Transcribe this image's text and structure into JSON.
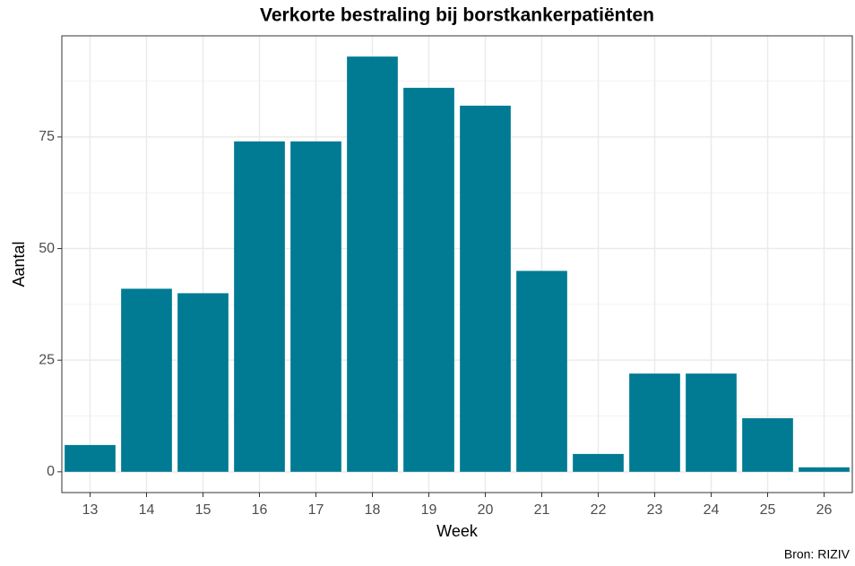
{
  "chart_data": {
    "type": "bar",
    "title": "Verkorte bestraling bij borstkankerpatiënten",
    "x_label": "Week",
    "y_label": "Aantal",
    "caption": "Bron: RIZIV",
    "categories": [
      13,
      14,
      15,
      16,
      17,
      18,
      19,
      20,
      21,
      22,
      23,
      24,
      25,
      26
    ],
    "values": [
      6,
      41,
      40,
      74,
      74,
      93,
      86,
      82,
      45,
      4,
      22,
      22,
      12,
      1
    ],
    "color": "#007b93",
    "ylim": [
      -4.65,
      97.65
    ],
    "yticks": [
      0,
      25,
      50,
      75
    ],
    "y_minor_ticks": [
      12.5,
      37.5,
      62.5,
      87.5
    ],
    "grid": true
  }
}
